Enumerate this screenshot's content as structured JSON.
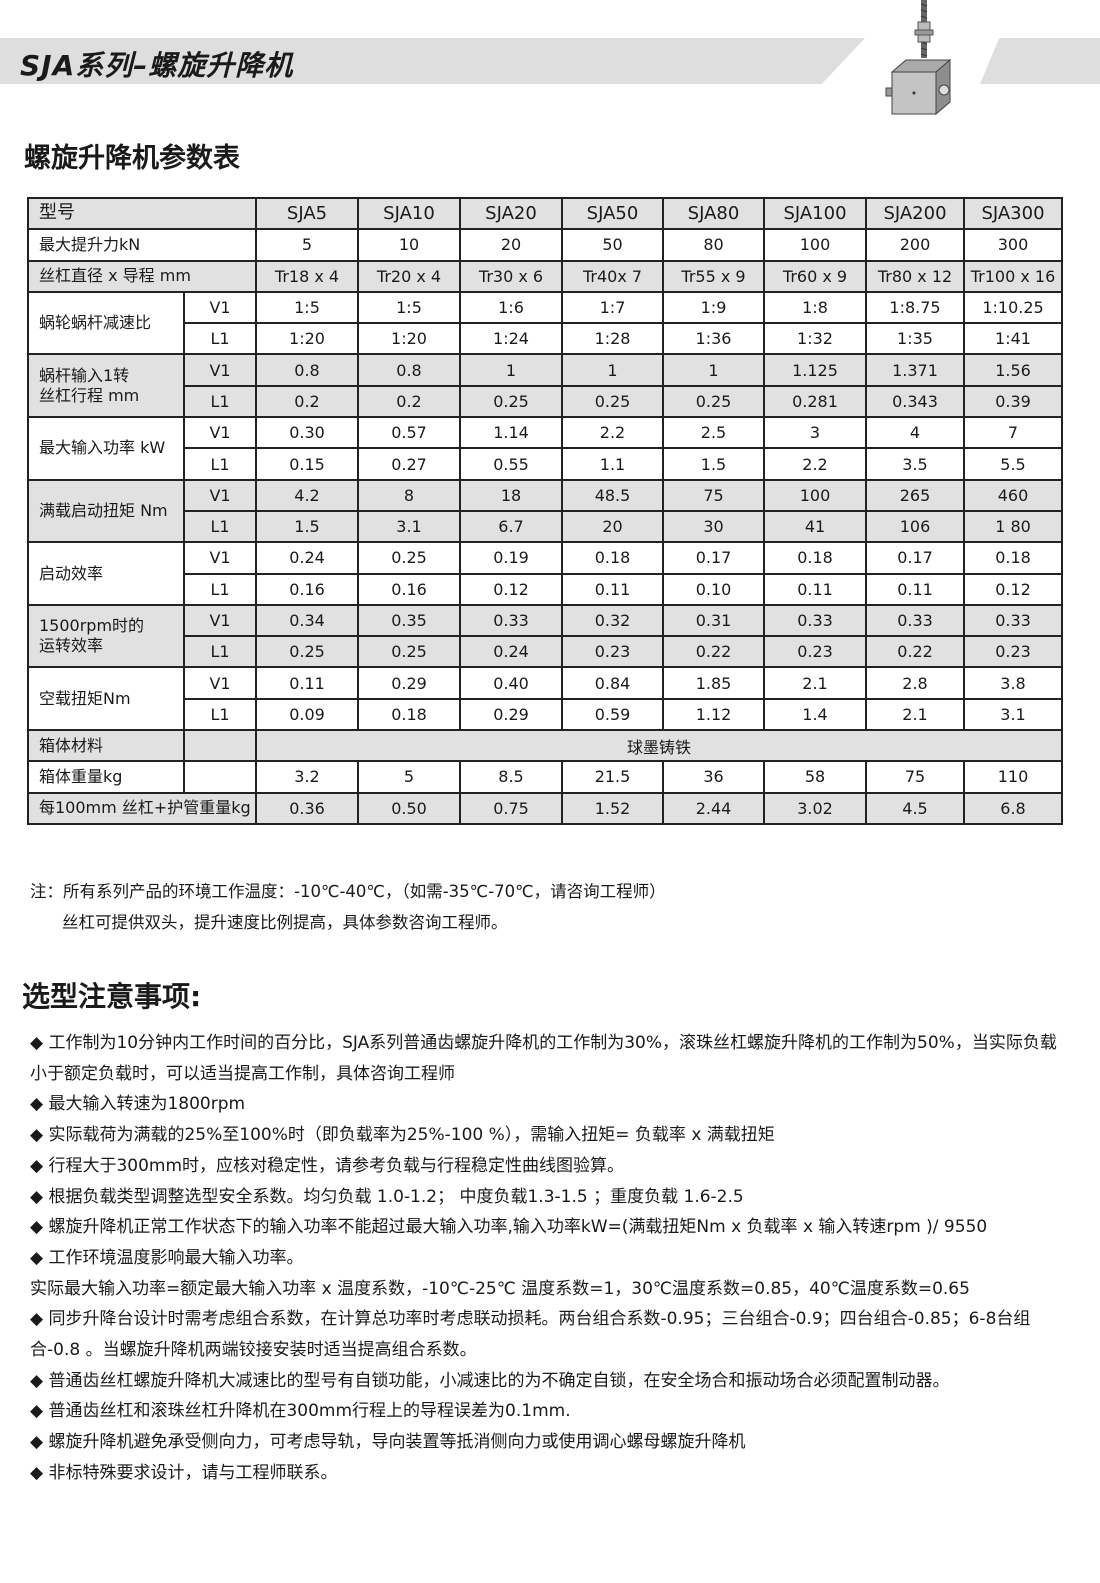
{
  "header": {
    "series_title": "SJA系列–螺旋升降机"
  },
  "table_title": "螺旋升降机参数表",
  "table": {
    "models_label": "型号",
    "models": [
      "SJA5",
      "SJA10",
      "SJA20",
      "SJA50",
      "SJA80",
      "SJA100",
      "SJA200",
      "SJA300"
    ],
    "single_rows": [
      {
        "label": "最大提升力kN",
        "values": [
          "5",
          "10",
          "20",
          "50",
          "80",
          "100",
          "200",
          "300"
        ]
      },
      {
        "label": "丝杠直径 x 导程 mm",
        "values": [
          "Tr18 x 4",
          "Tr20 x 4",
          "Tr30 x 6",
          "Tr40x 7",
          "Tr55 x 9",
          "Tr60 x 9",
          "Tr80 x 12",
          "Tr100 x 16"
        ]
      }
    ],
    "groups": [
      {
        "label": "蜗轮蜗杆减速比",
        "rows": [
          {
            "sub": "V1",
            "values": [
              "1:5",
              "1:5",
              "1:6",
              "1:7",
              "1:9",
              "1:8",
              "1:8.75",
              "1:10.25"
            ]
          },
          {
            "sub": "L1",
            "values": [
              "1:20",
              "1:20",
              "1:24",
              "1:28",
              "1:36",
              "1:32",
              "1:35",
              "1:41"
            ]
          }
        ]
      },
      {
        "label": "蜗杆输入1转\n丝杠行程 mm",
        "rows": [
          {
            "sub": "V1",
            "values": [
              "0.8",
              "0.8",
              "1",
              "1",
              "1",
              "1.125",
              "1.371",
              "1.56"
            ]
          },
          {
            "sub": "L1",
            "values": [
              "0.2",
              "0.2",
              "0.25",
              "0.25",
              "0.25",
              "0.281",
              "0.343",
              "0.39"
            ]
          }
        ]
      },
      {
        "label": "最大输入功率 kW",
        "rows": [
          {
            "sub": "V1",
            "values": [
              "0.30",
              "0.57",
              "1.14",
              "2.2",
              "2.5",
              "3",
              "4",
              "7"
            ]
          },
          {
            "sub": "L1",
            "values": [
              "0.15",
              "0.27",
              "0.55",
              "1.1",
              "1.5",
              "2.2",
              "3.5",
              "5.5"
            ]
          }
        ]
      },
      {
        "label": "满载启动扭矩 Nm",
        "rows": [
          {
            "sub": "V1",
            "values": [
              "4.2",
              "8",
              "18",
              "48.5",
              "75",
              "100",
              "265",
              "460"
            ]
          },
          {
            "sub": "L1",
            "values": [
              "1.5",
              "3.1",
              "6.7",
              "20",
              "30",
              "41",
              "106",
              "1 80"
            ]
          }
        ]
      },
      {
        "label": "启动效率",
        "rows": [
          {
            "sub": "V1",
            "values": [
              "0.24",
              "0.25",
              "0.19",
              "0.18",
              "0.17",
              "0.18",
              "0.17",
              "0.18"
            ]
          },
          {
            "sub": "L1",
            "values": [
              "0.16",
              "0.16",
              "0.12",
              "0.11",
              "0.10",
              "0.11",
              "0.11",
              "0.12"
            ]
          }
        ]
      },
      {
        "label": "1500rpm时的\n运转效率",
        "rows": [
          {
            "sub": "V1",
            "values": [
              "0.34",
              "0.35",
              "0.33",
              "0.32",
              "0.31",
              "0.33",
              "0.33",
              "0.33"
            ]
          },
          {
            "sub": "L1",
            "values": [
              "0.25",
              "0.25",
              "0.24",
              "0.23",
              "0.22",
              "0.23",
              "0.22",
              "0.23"
            ]
          }
        ]
      },
      {
        "label": "空载扭矩Nm",
        "rows": [
          {
            "sub": "V1",
            "values": [
              "0.11",
              "0.29",
              "0.40",
              "0.84",
              "1.85",
              "2.1",
              "2.8",
              "3.8"
            ]
          },
          {
            "sub": "L1",
            "values": [
              "0.09",
              "0.18",
              "0.29",
              "0.59",
              "1.12",
              "1.4",
              "2.1",
              "3.1"
            ]
          }
        ]
      }
    ],
    "material": {
      "label": "箱体材料",
      "value": "球墨铸铁"
    },
    "weight": {
      "label": "箱体重量kg",
      "values": [
        "3.2",
        "5",
        "8.5",
        "21.5",
        "36",
        "58",
        "75",
        "110"
      ]
    },
    "screw_weight": {
      "label": "每100mm 丝杠+护管重量kg",
      "values": [
        "0.36",
        "0.50",
        "0.75",
        "1.52",
        "2.44",
        "3.02",
        "4.5",
        "6.8"
      ]
    }
  },
  "notes": {
    "line1": "注：所有系列产品的环境工作温度：-10℃-40℃，（如需-35℃-70℃，请咨询工程师）",
    "line2": "丝杠可提供双头，提升速度比例提高，具体参数咨询工程师。"
  },
  "tips_title": "选型注意事项:",
  "tips": [
    "◆ 工作制为10分钟内工作时间的百分比，SJA系列普通齿螺旋升降机的工作制为30%，滚珠丝杠螺旋升降机的工作制为50%，当实际负载小于额定负载时，可以适当提高工作制，具体咨询工程师",
    "◆ 最大输入转速为1800rpm",
    "◆ 实际载荷为满载的25%至100%时（即负载率为25%-100 %），需输入扭矩= 负载率 x 满载扭矩",
    "◆ 行程大于300mm时，应核对稳定性，请参考负载与行程稳定性曲线图验算。",
    "◆ 根据负载类型调整选型安全系数。均匀负载 1.0-1.2； 中度负载1.3-1.5 ；重度负载 1.6-2.5",
    "◆ 螺旋升降机正常工作状态下的输入功率不能超过最大输入功率,输入功率kW=(满载扭矩Nm x 负载率 x 输入转速rpm )/ 9550",
    "◆ 工作环境温度影响最大输入功率。",
    "实际最大输入功率=额定最大输入功率 x 温度系数，-10℃-25℃ 温度系数=1，30℃温度系数=0.85，40℃温度系数=0.65",
    "◆ 同步升降台设计时需考虑组合系数，在计算总功率时考虑联动损耗。两台组合系数-0.95；三台组合-0.9；四台组合-0.85；6-8台组合-0.8 。当螺旋升降机两端铰接安装时适当提高组合系数。",
    "◆ 普通齿丝杠螺旋升降机大减速比的型号有自锁功能，小减速比的为不确定自锁，在安全场合和振动场合必须配置制动器。",
    "◆ 普通齿丝杠和滚珠丝杠升降机在300mm行程上的导程误差为0.1mm.",
    "◆ 螺旋升降机避免承受侧向力，可考虑导轨，导向装置等抵消侧向力或使用调心螺母螺旋升降机",
    "◆ 非标特殊要求设计，请与工程师联系。"
  ]
}
